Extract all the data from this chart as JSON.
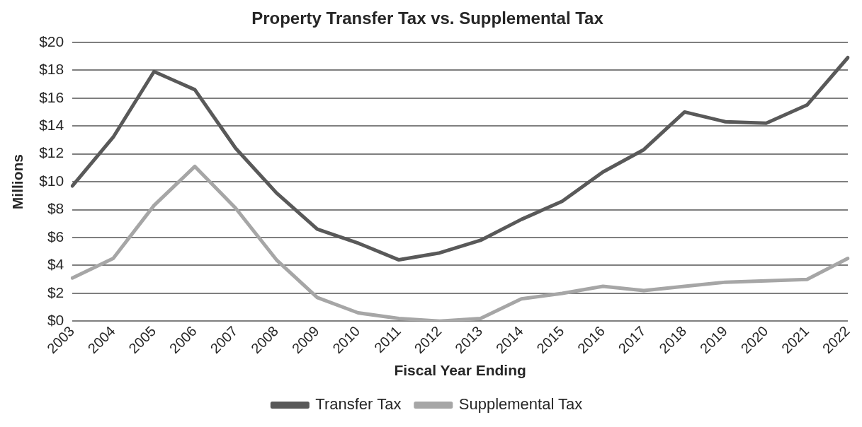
{
  "chart_data": {
    "type": "line",
    "title": "Property Transfer Tax vs. Supplemental Tax",
    "xlabel": "Fiscal Year Ending",
    "ylabel": "Millions",
    "categories": [
      "2003",
      "2004",
      "2005",
      "2006",
      "2007",
      "2008",
      "2009",
      "2010",
      "2011",
      "2012",
      "2013",
      "2014",
      "2015",
      "2016",
      "2017",
      "2018",
      "2019",
      "2020",
      "2021",
      "2022"
    ],
    "series": [
      {
        "name": "Transfer Tax",
        "color": "#595959",
        "values": [
          9.7,
          13.2,
          17.9,
          16.6,
          12.4,
          9.2,
          6.6,
          5.6,
          4.4,
          4.9,
          5.8,
          7.3,
          8.6,
          10.7,
          12.3,
          15.0,
          14.3,
          14.2,
          15.5,
          18.9
        ]
      },
      {
        "name": "Supplemental Tax",
        "color": "#a6a6a6",
        "values": [
          3.1,
          4.5,
          8.3,
          11.1,
          8.1,
          4.4,
          1.7,
          0.6,
          0.2,
          0.0,
          0.2,
          1.6,
          2.0,
          2.5,
          2.2,
          2.5,
          2.8,
          2.9,
          3.0,
          4.5
        ]
      }
    ],
    "ylim": [
      0,
      20
    ],
    "yticks": [
      {
        "value": 0,
        "label": "$0"
      },
      {
        "value": 2,
        "label": "$2"
      },
      {
        "value": 4,
        "label": "$4"
      },
      {
        "value": 6,
        "label": "$6"
      },
      {
        "value": 8,
        "label": "$8"
      },
      {
        "value": 10,
        "label": "$10"
      },
      {
        "value": 12,
        "label": "$12"
      },
      {
        "value": 14,
        "label": "$14"
      },
      {
        "value": 16,
        "label": "$16"
      },
      {
        "value": 18,
        "label": "$18"
      },
      {
        "value": 20,
        "label": "$20"
      }
    ],
    "grid": "y",
    "legend": "bottom",
    "marker": "none",
    "line_style": "solid"
  }
}
